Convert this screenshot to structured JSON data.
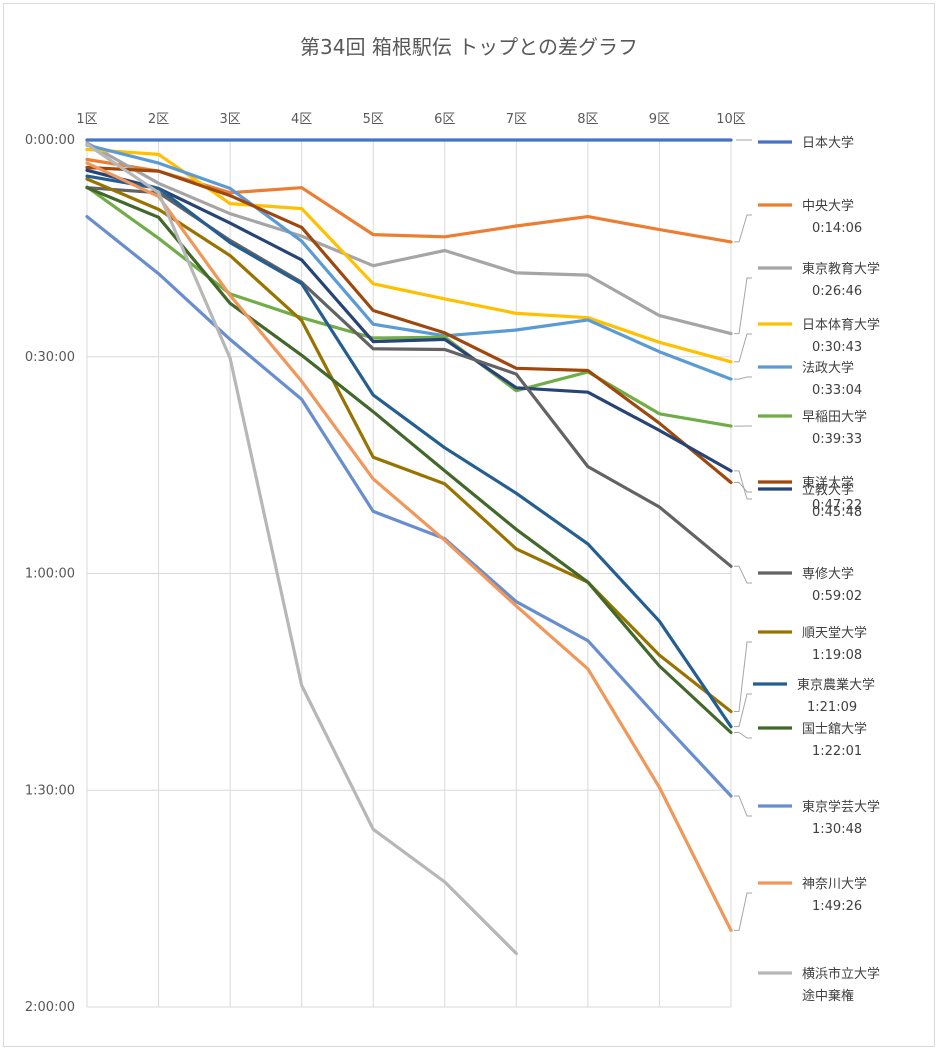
{
  "chart_data": {
    "type": "line",
    "title": "第34回 箱根駅伝 トップとの差グラフ",
    "x": [
      "1区",
      "2区",
      "3区",
      "4区",
      "5区",
      "6区",
      "7区",
      "8区",
      "9区",
      "10区"
    ],
    "y_ticks": [
      "0:00:00",
      "0:30:00",
      "1:00:00",
      "1:30:00",
      "2:00:00"
    ],
    "ylim_minutes": [
      0,
      120
    ],
    "y_reversed": true,
    "y_unit": "minutes behind leader",
    "grid": true,
    "legend_position": "right",
    "series": [
      {
        "name": "日本大学",
        "label": "",
        "color": "#4472c4",
        "values": [
          0,
          0,
          0,
          0,
          0,
          0,
          0,
          0,
          0,
          0
        ]
      },
      {
        "name": "中央大学",
        "label": "0:14:06",
        "color": "#ed7d31",
        "values": [
          2.7,
          4.3,
          7.3,
          6.6,
          13.1,
          13.4,
          11.9,
          10.6,
          12.4,
          14.1
        ]
      },
      {
        "name": "東京教育大学",
        "label": "0:26:46",
        "color": "#a5a5a5",
        "values": [
          0.4,
          6.0,
          10.2,
          13.3,
          17.4,
          15.3,
          18.4,
          18.7,
          24.3,
          26.8
        ]
      },
      {
        "name": "日本体育大学",
        "label": "0:30:43",
        "color": "#ffc000",
        "values": [
          1.3,
          2.0,
          8.8,
          9.5,
          19.9,
          22.0,
          24.0,
          24.6,
          28.0,
          30.7
        ]
      },
      {
        "name": "法政大学",
        "label": "0:33:04",
        "color": "#5b9bd5",
        "values": [
          0.7,
          3.2,
          6.7,
          14.0,
          25.5,
          27.1,
          26.3,
          24.9,
          29.3,
          33.1
        ]
      },
      {
        "name": "早稲田大学",
        "label": "0:39:33",
        "color": "#70ad47",
        "values": [
          6.5,
          13.6,
          21.3,
          24.6,
          27.4,
          27.3,
          34.7,
          32.1,
          37.9,
          39.6
        ]
      },
      {
        "name": "東洋大学",
        "label": "0:47:22",
        "color": "#9e480e",
        "values": [
          3.8,
          4.3,
          7.7,
          12.1,
          23.6,
          26.7,
          31.6,
          31.9,
          39.2,
          47.4
        ]
      },
      {
        "name": "立教大学",
        "label": "0:45:48",
        "color": "#264478",
        "values": [
          4.2,
          6.7,
          11.5,
          16.6,
          27.9,
          27.6,
          34.3,
          34.9,
          40.2,
          45.8
        ]
      },
      {
        "name": "専修大学",
        "label": "0:59:02",
        "color": "#636363",
        "values": [
          6.6,
          7.3,
          13.9,
          19.7,
          28.9,
          29.0,
          32.4,
          45.2,
          50.8,
          59.0
        ]
      },
      {
        "name": "順天堂大学",
        "label": "1:19:08",
        "color": "#997300",
        "values": [
          5.4,
          9.6,
          16.0,
          25.0,
          43.9,
          47.6,
          56.6,
          61.2,
          71.3,
          79.1
        ]
      },
      {
        "name": "東京農業大学",
        "label": "1:21:09",
        "color": "#255e91",
        "values": [
          5.0,
          6.7,
          14.2,
          19.9,
          35.3,
          42.6,
          48.9,
          55.9,
          66.6,
          81.2
        ]
      },
      {
        "name": "国士舘大学",
        "label": "1:22:01",
        "color": "#43682b",
        "values": [
          6.6,
          10.7,
          22.6,
          29.8,
          37.6,
          45.8,
          53.9,
          61.2,
          72.8,
          82.0
        ]
      },
      {
        "name": "東京学芸大学",
        "label": "1:30:48",
        "color": "#698ed0",
        "values": [
          10.6,
          18.5,
          27.6,
          35.9,
          51.4,
          55.2,
          63.9,
          69.3,
          80.2,
          90.8
        ]
      },
      {
        "name": "神奈川大学",
        "label": "1:49:26",
        "color": "#f1975a",
        "values": [
          3.2,
          7.8,
          21.5,
          33.4,
          46.9,
          55.4,
          64.5,
          73.2,
          89.6,
          109.4
        ]
      },
      {
        "name": "横浜市立大学",
        "label": "途中棄権",
        "color": "#b7b7b7",
        "values": [
          0.6,
          7.3,
          30.2,
          75.5,
          95.4,
          102.7,
          112.6,
          null,
          null,
          null
        ]
      }
    ]
  }
}
